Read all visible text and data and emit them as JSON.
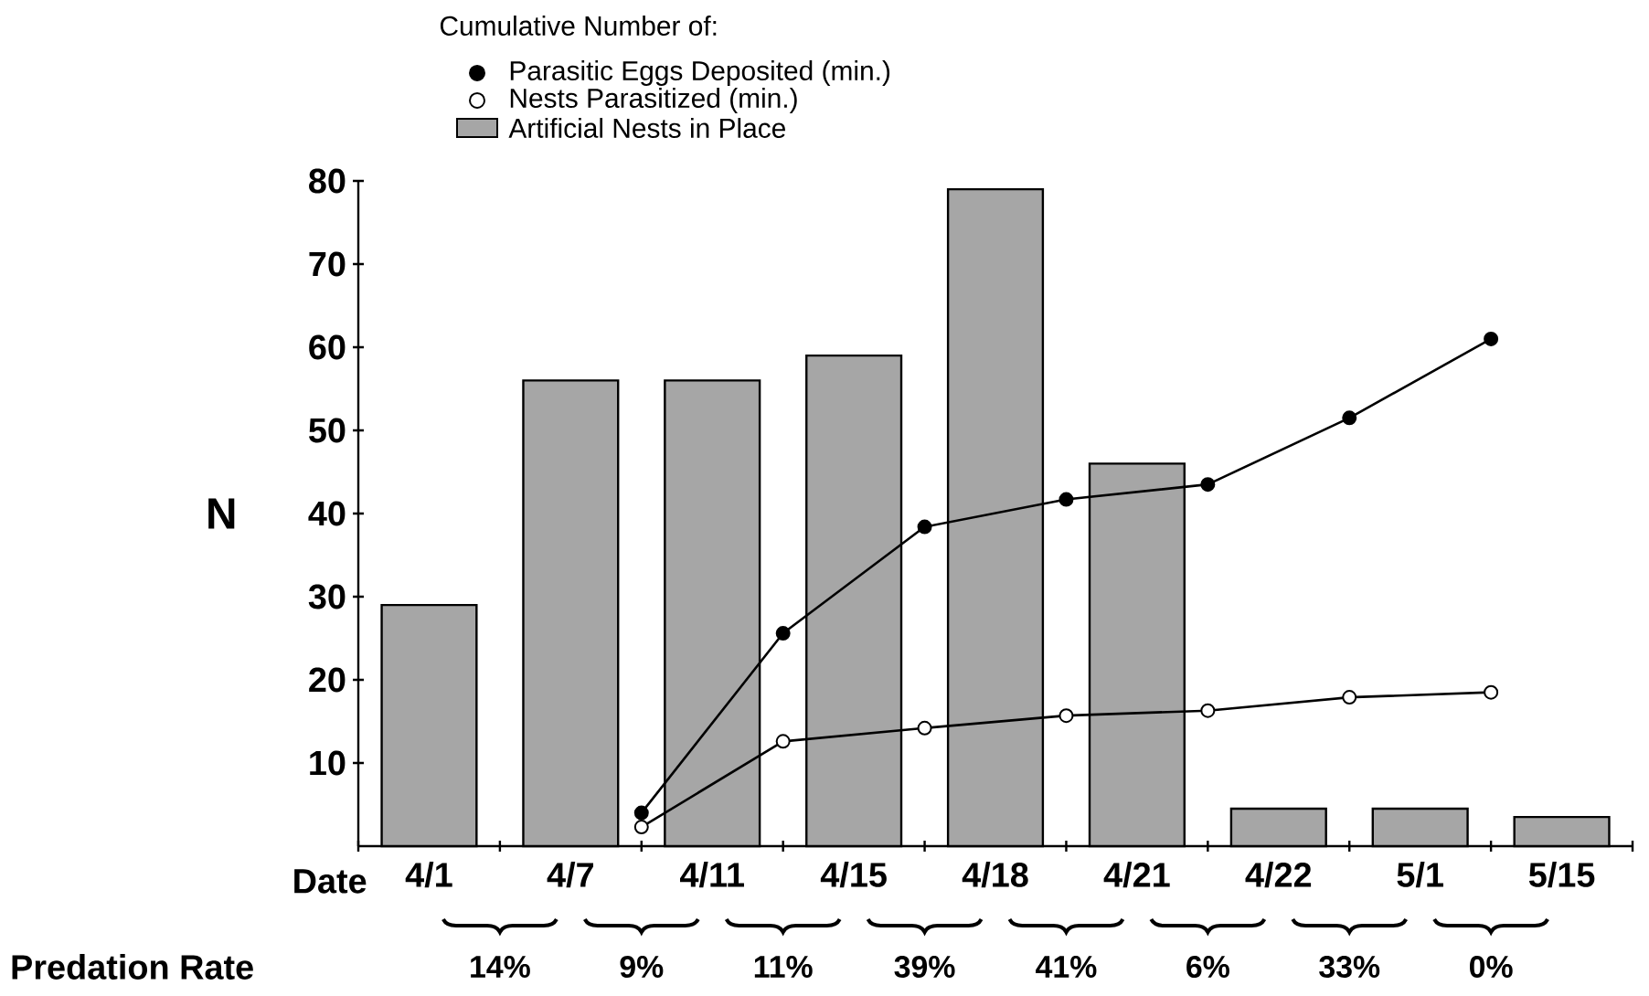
{
  "chart_data": {
    "type": "bar",
    "legend_title": "Cumulative Number of:",
    "xlabel": "Date",
    "ylabel": "N",
    "categories": [
      null,
      "4/1",
      null,
      "4/7",
      null,
      "4/11",
      null,
      "4/15",
      null,
      "4/18",
      null,
      "4/21",
      null,
      "4/22",
      null,
      "5/1",
      null,
      "5/15",
      null
    ],
    "series": [
      {
        "name": "Parasitic Eggs Deposited (min.)",
        "type": "line",
        "color": "#000000",
        "values": [
          null,
          null,
          null,
          null,
          4,
          null,
          25.6,
          null,
          38.4,
          null,
          41.7,
          null,
          43.5,
          null,
          51.5,
          null,
          61,
          null,
          null
        ]
      },
      {
        "name": "Nests Parasitized (min.)",
        "type": "line",
        "color": "#ffffff",
        "values": [
          null,
          null,
          null,
          null,
          2.3,
          null,
          12.6,
          null,
          14.2,
          null,
          15.7,
          null,
          16.3,
          null,
          17.9,
          null,
          18.5,
          null,
          null
        ]
      },
      {
        "name": "Artificial Nests in Place",
        "color": "#a6a6a6",
        "values": [
          null,
          29,
          null,
          56,
          null,
          56,
          null,
          59,
          null,
          79,
          null,
          46,
          null,
          4.5,
          null,
          4.5,
          null,
          3.5,
          null
        ]
      }
    ],
    "ylim": [
      0,
      80
    ],
    "yticks": [
      10,
      20,
      30,
      40,
      50,
      60,
      70,
      80
    ],
    "annotations": [
      "Predation Rate",
      "14%",
      "9%",
      "11%",
      "39%",
      "41%",
      "6%",
      "33%",
      "0%"
    ],
    "legend": "top",
    "marker": "circle",
    "line_style": "solid",
    "grid": false
  }
}
